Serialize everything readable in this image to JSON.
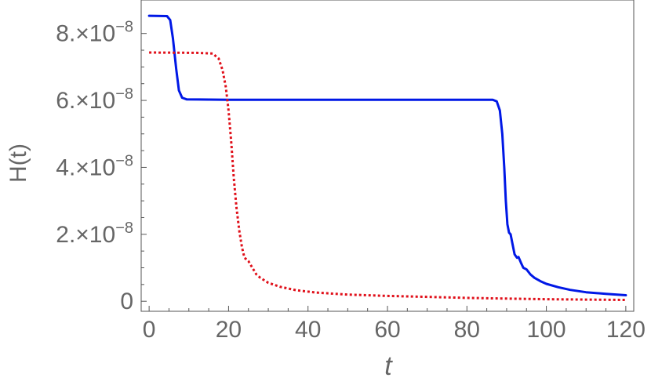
{
  "chart_data": {
    "type": "line",
    "xlabel": "t",
    "ylabel": "H(t)",
    "xlim": [
      -2,
      122
    ],
    "ylim": [
      -3e-09,
      9e-08
    ],
    "x_ticks": [
      0,
      20,
      40,
      60,
      80,
      100,
      120
    ],
    "x_tick_labels": [
      "0",
      "20",
      "40",
      "60",
      "80",
      "100",
      "120"
    ],
    "y_ticks": [
      0,
      2e-08,
      4e-08,
      6e-08,
      8e-08
    ],
    "y_tick_labels": [
      {
        "mantissa": "0",
        "exponent": ""
      },
      {
        "mantissa": "2.×10",
        "exponent": "−8"
      },
      {
        "mantissa": "4.×10",
        "exponent": "−8"
      },
      {
        "mantissa": "6.×10",
        "exponent": "−8"
      },
      {
        "mantissa": "8.×10",
        "exponent": "−8"
      }
    ],
    "grid": false,
    "series": [
      {
        "color": "#0018e6",
        "dash": "solid",
        "points": [
          [
            0,
            8.53e-08
          ],
          [
            4.5,
            8.52e-08
          ],
          [
            5.3,
            8.4e-08
          ],
          [
            6.0,
            7.85e-08
          ],
          [
            6.8,
            6.95e-08
          ],
          [
            7.5,
            6.3e-08
          ],
          [
            8.3,
            6.08e-08
          ],
          [
            9.5,
            6.03e-08
          ],
          [
            20,
            6.02e-08
          ],
          [
            40,
            6.02e-08
          ],
          [
            60,
            6.02e-08
          ],
          [
            80,
            6.02e-08
          ],
          [
            86.5,
            6.02e-08
          ],
          [
            87.5,
            5.97e-08
          ],
          [
            88.3,
            5.7e-08
          ],
          [
            88.9,
            5e-08
          ],
          [
            89.4,
            4e-08
          ],
          [
            89.8,
            3e-08
          ],
          [
            90.2,
            2.3e-08
          ],
          [
            90.6,
            2.05e-08
          ],
          [
            91.0,
            2e-08
          ],
          [
            91.5,
            1.7e-08
          ],
          [
            92.0,
            1.4e-08
          ],
          [
            92.6,
            1.3e-08
          ],
          [
            93.0,
            1.32e-08
          ],
          [
            93.6,
            1.15e-08
          ],
          [
            94.2,
            1e-08
          ],
          [
            95.0,
            9.5e-09
          ],
          [
            96.0,
            8e-09
          ],
          [
            97.0,
            7e-09
          ],
          [
            98.5,
            6e-09
          ],
          [
            100,
            5.2e-09
          ],
          [
            103,
            4.2e-09
          ],
          [
            106,
            3.4e-09
          ],
          [
            110,
            2.7e-09
          ],
          [
            115,
            2.2e-09
          ],
          [
            120,
            1.8e-09
          ]
        ]
      },
      {
        "color": "#e0101a",
        "dash": "dotted",
        "points": [
          [
            0,
            7.43e-08
          ],
          [
            12,
            7.42e-08
          ],
          [
            16,
            7.4e-08
          ],
          [
            17.5,
            7.25e-08
          ],
          [
            18.5,
            6.9e-08
          ],
          [
            19.3,
            6.4e-08
          ],
          [
            20.0,
            5.7e-08
          ],
          [
            20.7,
            4.7e-08
          ],
          [
            21.3,
            3.7e-08
          ],
          [
            22.0,
            2.8e-08
          ],
          [
            22.7,
            2.1e-08
          ],
          [
            23.4,
            1.6e-08
          ],
          [
            24.0,
            1.3e-08
          ],
          [
            25.0,
            1.2e-08
          ],
          [
            26.0,
            1e-08
          ],
          [
            27.0,
            8e-09
          ],
          [
            28.0,
            7e-09
          ],
          [
            30.0,
            5.5e-09
          ],
          [
            33.0,
            4.3e-09
          ],
          [
            37.0,
            3.3e-09
          ],
          [
            42.0,
            2.6e-09
          ],
          [
            50.0,
            2e-09
          ],
          [
            60.0,
            1.6e-09
          ],
          [
            70.0,
            1.3e-09
          ],
          [
            80.0,
            1e-09
          ],
          [
            90.0,
            8e-10
          ],
          [
            100.0,
            6e-10
          ],
          [
            110.0,
            5e-10
          ],
          [
            120.0,
            4e-10
          ]
        ]
      }
    ]
  }
}
